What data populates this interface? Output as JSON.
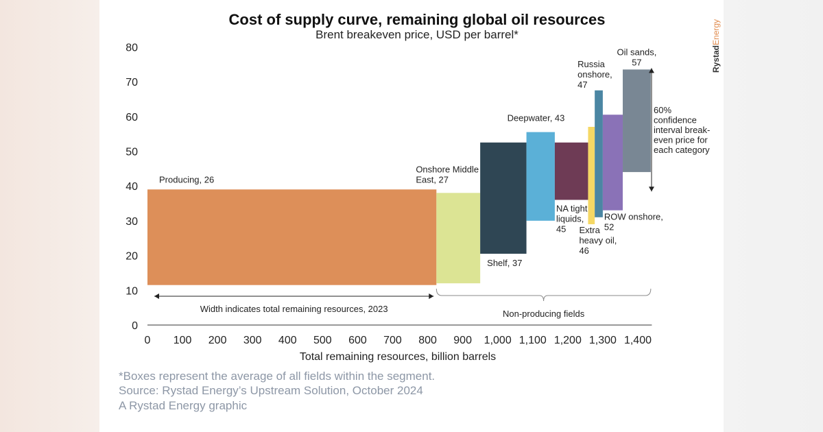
{
  "chart_data": {
    "type": "bar",
    "subtype": "variable-width cost of supply curve",
    "title": "Cost of supply curve, remaining global oil resources",
    "subtitle": "Brent breakeven price, USD per barrel*",
    "xlabel": "Total remaining resources, billion barrels",
    "ylabel": "",
    "xlim": [
      0,
      1440
    ],
    "ylim": [
      0,
      80
    ],
    "x_ticks": [
      0,
      100,
      200,
      300,
      400,
      500,
      600,
      700,
      800,
      900,
      1000,
      1100,
      1200,
      1300,
      1400
    ],
    "x_tick_labels": [
      "0",
      "100",
      "200",
      "300",
      "400",
      "500",
      "600",
      "700",
      "800",
      "900",
      "1,000",
      "1,100",
      "1,200",
      "1,300",
      "1,400"
    ],
    "y_ticks": [
      0,
      10,
      20,
      30,
      40,
      50,
      60,
      70,
      80
    ],
    "y_tick_labels": [
      "0",
      "10",
      "20",
      "30",
      "40",
      "50",
      "60",
      "70",
      "80"
    ],
    "segments": [
      {
        "name": "Producing",
        "breakeven": 26,
        "x_start": 0,
        "x_end": 825,
        "low": 11.5,
        "high": 39,
        "color": "#dd8f59",
        "label_lines": [
          "Producing, 26"
        ]
      },
      {
        "name": "Onshore Middle East",
        "breakeven": 27,
        "x_start": 825,
        "x_end": 950,
        "low": 12,
        "high": 38,
        "color": "#dce494",
        "label_lines": [
          "Onshore Middle",
          "East, 27"
        ]
      },
      {
        "name": "Shelf",
        "breakeven": 37,
        "x_start": 950,
        "x_end": 1082,
        "low": 20.5,
        "high": 52.5,
        "color": "#2f4654",
        "label_lines": [
          "Shelf, 37"
        ]
      },
      {
        "name": "Deepwater",
        "breakeven": 43,
        "x_start": 1082,
        "x_end": 1163,
        "low": 30,
        "high": 55.5,
        "color": "#5bb0d7",
        "label_lines": [
          "Deepwater, 43"
        ]
      },
      {
        "name": "NA tight liquids",
        "breakeven": 45,
        "x_start": 1163,
        "x_end": 1258,
        "low": 36,
        "high": 52.5,
        "color": "#6e3b55",
        "label_lines": [
          "NA tight",
          "liquids,",
          "45"
        ]
      },
      {
        "name": "Extra heavy oil",
        "breakeven": 46,
        "x_start": 1258,
        "x_end": 1277,
        "low": 29,
        "high": 57,
        "color": "#f5d865",
        "label_lines": [
          "Extra",
          "heavy oil,",
          "46"
        ]
      },
      {
        "name": "Russia onshore",
        "breakeven": 47,
        "x_start": 1277,
        "x_end": 1300,
        "low": 31,
        "high": 67.5,
        "color": "#4b86a3",
        "label_lines": [
          "Russia",
          "onshore,",
          "47"
        ]
      },
      {
        "name": "ROW onshore",
        "breakeven": 52,
        "x_start": 1300,
        "x_end": 1357,
        "low": 33,
        "high": 60.5,
        "color": "#8a72b7",
        "label_lines": [
          "ROW onshore,",
          "52"
        ]
      },
      {
        "name": "Oil sands",
        "breakeven": 57,
        "x_start": 1357,
        "x_end": 1437,
        "low": 44,
        "high": 73.5,
        "color": "#798794",
        "label_lines": [
          "Oil sands,",
          "57"
        ]
      }
    ],
    "annotations": {
      "width_note": "Width indicates total remaining resources, 2023",
      "width_range": [
        0,
        825
      ],
      "non_producing": "Non-producing fields",
      "non_producing_range": [
        825,
        1437
      ],
      "confidence_note_lines": [
        "60%",
        "confidence",
        "interval break-",
        "even price for",
        "each category"
      ],
      "confidence_range": [
        40,
        73.5
      ]
    }
  },
  "footnotes": [
    "*Boxes represent the average of all fields within the segment.",
    "Source: Rystad Energy’s Upstream Solution, October 2024",
    "A Rystad Energy graphic"
  ],
  "brand": {
    "part1": "Rystad",
    "part2": "Energy"
  }
}
